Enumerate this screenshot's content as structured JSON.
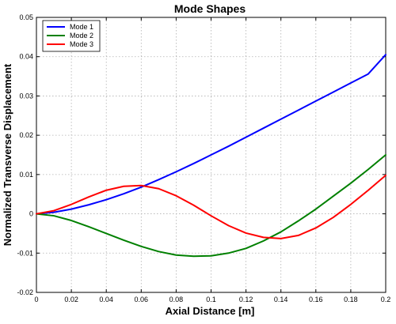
{
  "chart_data": {
    "type": "line",
    "title": "Mode Shapes",
    "xlabel": "Axial Distance [m]",
    "ylabel": "Normalized Transverse Displacement",
    "xlim": [
      0,
      0.2
    ],
    "ylim": [
      -0.02,
      0.05
    ],
    "xticks": [
      "0",
      "0.02",
      "0.04",
      "0.06",
      "0.08",
      "0.1",
      "0.12",
      "0.14",
      "0.16",
      "0.18",
      "0.2"
    ],
    "xtick_values": [
      0,
      0.02,
      0.04,
      0.06,
      0.08,
      0.1,
      0.12,
      0.14,
      0.16,
      0.18,
      0.2
    ],
    "yticks": [
      "-0.02",
      "-0.01",
      "0",
      "0.01",
      "0.02",
      "0.03",
      "0.04",
      "0.05"
    ],
    "ytick_values": [
      -0.02,
      -0.01,
      0,
      0.01,
      0.02,
      0.03,
      0.04,
      0.05
    ],
    "grid": true,
    "legend_position": "top-left",
    "series": [
      {
        "name": "Mode 1",
        "color": "#0000ff",
        "x": [
          0,
          0.01,
          0.02,
          0.03,
          0.04,
          0.05,
          0.06,
          0.07,
          0.08,
          0.09,
          0.1,
          0.11,
          0.12,
          0.13,
          0.14,
          0.15,
          0.16,
          0.17,
          0.18,
          0.19,
          0.2
        ],
        "y": [
          0,
          0.0004,
          0.0012,
          0.0023,
          0.0036,
          0.0051,
          0.0068,
          0.0087,
          0.0107,
          0.0128,
          0.015,
          0.0172,
          0.0195,
          0.0218,
          0.0241,
          0.0264,
          0.0287,
          0.031,
          0.0333,
          0.0356,
          0.0405
        ]
      },
      {
        "name": "Mode 2",
        "color": "#008000",
        "x": [
          0,
          0.01,
          0.02,
          0.03,
          0.04,
          0.05,
          0.06,
          0.07,
          0.08,
          0.09,
          0.1,
          0.11,
          0.12,
          0.13,
          0.14,
          0.15,
          0.16,
          0.17,
          0.18,
          0.19,
          0.2
        ],
        "y": [
          0,
          -0.0005,
          -0.0017,
          -0.0033,
          -0.005,
          -0.0067,
          -0.0083,
          -0.0096,
          -0.0105,
          -0.0108,
          -0.0107,
          -0.01,
          -0.0088,
          -0.0069,
          -0.0046,
          -0.0018,
          0.0012,
          0.0045,
          0.0078,
          0.0113,
          0.015
        ]
      },
      {
        "name": "Mode 3",
        "color": "#ff0000",
        "x": [
          0,
          0.01,
          0.02,
          0.03,
          0.04,
          0.05,
          0.06,
          0.07,
          0.08,
          0.09,
          0.1,
          0.11,
          0.12,
          0.13,
          0.14,
          0.15,
          0.16,
          0.17,
          0.18,
          0.19,
          0.2
        ],
        "y": [
          0,
          0.0008,
          0.0024,
          0.0043,
          0.006,
          0.007,
          0.0072,
          0.0064,
          0.0046,
          0.0022,
          -0.0005,
          -0.003,
          -0.0049,
          -0.006,
          -0.0063,
          -0.0055,
          -0.0036,
          -0.0009,
          0.0024,
          0.006,
          0.0098
        ]
      }
    ]
  }
}
